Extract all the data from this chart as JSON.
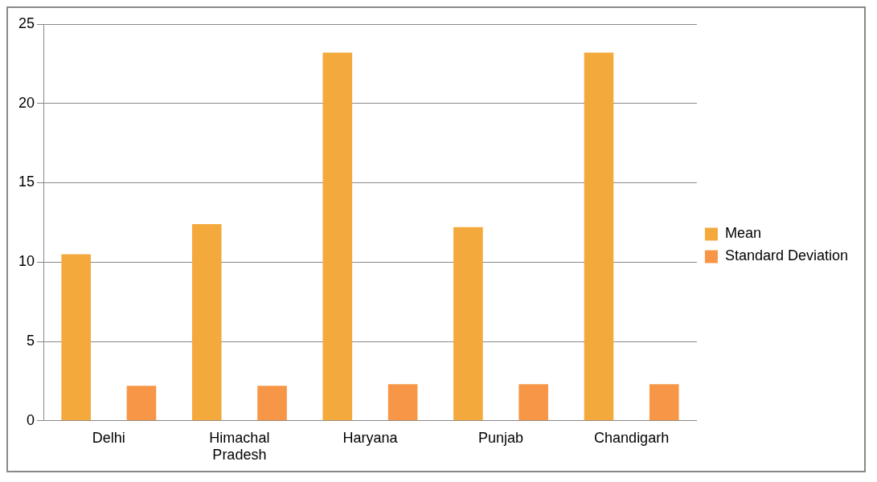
{
  "chart_data": {
    "type": "bar",
    "categories": [
      "Delhi",
      "Himachal Pradesh",
      "Haryana",
      "Punjab",
      "Chandigarh"
    ],
    "series": [
      {
        "name": "Mean",
        "color": "#f4a93c",
        "values": [
          10.5,
          12.4,
          23.2,
          12.2,
          23.2
        ]
      },
      {
        "name": "Standard Deviation",
        "color": "#f79646",
        "values": [
          2.2,
          2.2,
          2.3,
          2.3,
          2.3
        ]
      }
    ],
    "ylim": [
      0,
      25
    ],
    "yticks": [
      0,
      5,
      10,
      15,
      20,
      25
    ],
    "grid": "y",
    "legend": "right"
  }
}
